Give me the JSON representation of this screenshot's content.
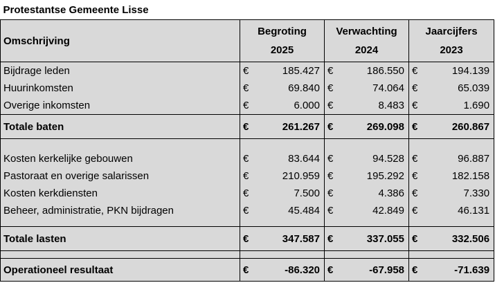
{
  "title": "Protestantse Gemeente Lisse",
  "header": {
    "description": "Omschrijving",
    "columns": [
      {
        "line1": "Begroting",
        "line2": "2025"
      },
      {
        "line1": "Verwachting",
        "line2": "2024"
      },
      {
        "line1": "Jaarcijfers",
        "line2": "2023"
      }
    ]
  },
  "currency": "€",
  "income": [
    {
      "label": "Bijdrage leden",
      "values": [
        "185.427",
        "186.550",
        "194.139"
      ]
    },
    {
      "label": "Huurinkomsten",
      "values": [
        "69.840",
        "74.064",
        "65.039"
      ]
    },
    {
      "label": "Overige inkomsten",
      "values": [
        "6.000",
        "8.483",
        "1.690"
      ]
    }
  ],
  "total_income": {
    "label": "Totale baten",
    "values": [
      "261.267",
      "269.098",
      "260.867"
    ]
  },
  "expenses": [
    {
      "label": "Kosten kerkelijke gebouwen",
      "values": [
        "83.644",
        "94.528",
        "96.887"
      ]
    },
    {
      "label": "Pastoraat en overige salarissen",
      "values": [
        "210.959",
        "195.292",
        "182.158"
      ]
    },
    {
      "label": "Kosten kerkdiensten",
      "values": [
        "7.500",
        "4.386",
        "7.330"
      ]
    },
    {
      "label": "Beheer, administratie, PKN bijdragen",
      "values": [
        "45.484",
        "42.849",
        "46.131"
      ]
    }
  ],
  "total_expenses": {
    "label": "Totale lasten",
    "values": [
      "347.587",
      "337.055",
      "332.506"
    ]
  },
  "result": {
    "label": "Operationeel resultaat",
    "values": [
      "-86.320",
      "-67.958",
      "-71.639"
    ]
  }
}
